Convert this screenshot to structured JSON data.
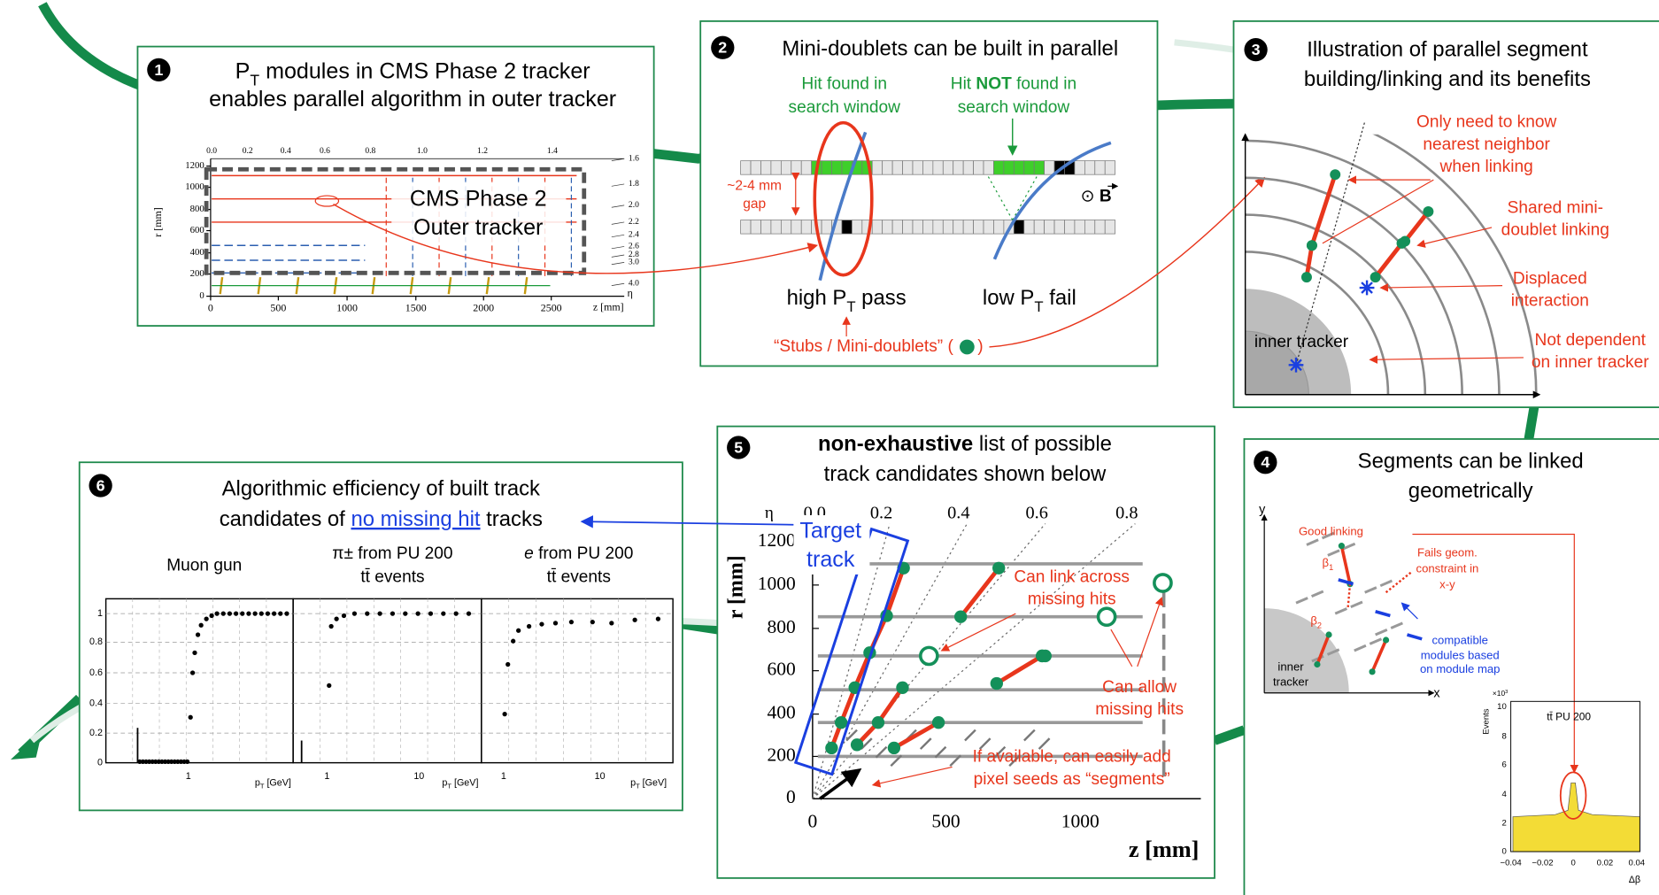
{
  "panel1": {
    "number": "1",
    "title": [
      "P",
      "T",
      " modules in CMS Phase 2 tracker"
    ],
    "title_line2": "enables parallel algorithm in outer tracker",
    "box_label": [
      "CMS Phase 2",
      "Outer tracker"
    ],
    "r_label": "r [mm]",
    "z_label": "z [mm]",
    "eta_label": "η",
    "r_ticks": [
      "0",
      "200",
      "400",
      "600",
      "800",
      "1000",
      "1200"
    ],
    "z_ticks": [
      "0",
      "500",
      "1000",
      "1500",
      "2000",
      "2500"
    ],
    "eta_top": [
      "0.0",
      "0.2",
      "0.4",
      "0.6",
      "0.8",
      "1.0",
      "1.2",
      "1.4"
    ],
    "eta_right": [
      "1.6",
      "1.8",
      "2.0",
      "2.2",
      "2.4",
      "2.6",
      "2.8",
      "3.0",
      "4.0"
    ]
  },
  "panel2": {
    "number": "2",
    "title": "Mini-doublets can be built in parallel",
    "hit_found": [
      "Hit found in",
      "search window"
    ],
    "hit_not_found": [
      "Hit ",
      "NOT",
      " found in",
      "search window"
    ],
    "gap": [
      "~2-4 mm",
      "gap"
    ],
    "bfield": [
      "⊙ ",
      "B"
    ],
    "high_pt": [
      "high P",
      "T",
      " pass"
    ],
    "low_pt": [
      "low P",
      "T",
      " fail"
    ],
    "stubs": [
      "“Stubs / Mini-doublets” (",
      ")"
    ]
  },
  "panel3": {
    "number": "3",
    "title": [
      "Illustration of parallel segment",
      "building/linking and its benefits"
    ],
    "notes": [
      [
        "Only need to know",
        "nearest neighbor",
        "when linking"
      ],
      [
        "Shared mini-",
        "doublet linking"
      ],
      [
        "Displaced",
        "interaction"
      ],
      [
        "Not dependent",
        "on inner tracker"
      ]
    ],
    "inner": "inner tracker"
  },
  "panel4": {
    "number": "4",
    "title": [
      "Segments can be linked",
      "geometrically"
    ],
    "axes": [
      "y",
      "x"
    ],
    "good": "Good linking",
    "beta1": [
      "β",
      "1"
    ],
    "beta2": [
      "β",
      "2"
    ],
    "fails": [
      "Fails geom.",
      "constraint in",
      "x-y"
    ],
    "compatible": [
      "compatible",
      "modules based",
      "on module map"
    ],
    "inner": [
      "inner",
      "tracker"
    ],
    "hist": {
      "scale": [
        "×10",
        "3"
      ],
      "y_label": "Events",
      "legend": "tt̄ PU 200",
      "x_label": "Δβ",
      "y_ticks": [
        "0",
        "2",
        "4",
        "6",
        "8",
        "10"
      ],
      "x_ticks": [
        "−0.04",
        "−0.02",
        "0",
        "0.02",
        "0.04"
      ]
    }
  },
  "panel5": {
    "number": "5",
    "title": [
      "non-exhaustive",
      " list of possible"
    ],
    "title_line2": "track candidates shown below",
    "eta_label": "η",
    "eta_ticks": [
      "0.0",
      "0.2",
      "0.4",
      "0.6",
      "0.8"
    ],
    "r_label": "r [mm]",
    "z_label": "z [mm]",
    "r_ticks": [
      "0",
      "200",
      "400",
      "600",
      "800",
      "1000",
      "1200"
    ],
    "z_ticks": [
      "0",
      "500",
      "1000"
    ],
    "target": [
      "Target",
      "track"
    ],
    "link_across": [
      "Can link across",
      "missing hits"
    ],
    "allow_missing": [
      "Can allow",
      "missing hits"
    ],
    "pixel_seeds": [
      "If available, can easily add",
      "pixel seeds as “segments”"
    ]
  },
  "panel6": {
    "number": "6",
    "title": "Algorithmic efficiency of built track",
    "title_line2": [
      "candidates of ",
      "no missing hit",
      " tracks"
    ],
    "plots": [
      {
        "title": [
          "Muon gun"
        ]
      },
      {
        "title": [
          "π± from PU 200"
        ],
        "subtitle": "tt̄ events"
      },
      {
        "title": [
          "e",
          " from PU 200"
        ],
        "subtitle": "tt̄ events"
      }
    ],
    "y_ticks": [
      "0",
      "0.2",
      "0.4",
      "0.6",
      "0.8",
      "1"
    ],
    "x_ticks": [
      [
        "1"
      ],
      [
        "1",
        "10"
      ],
      [
        "1",
        "10"
      ]
    ],
    "x_label": [
      "p",
      "T",
      " [GeV]"
    ]
  }
}
